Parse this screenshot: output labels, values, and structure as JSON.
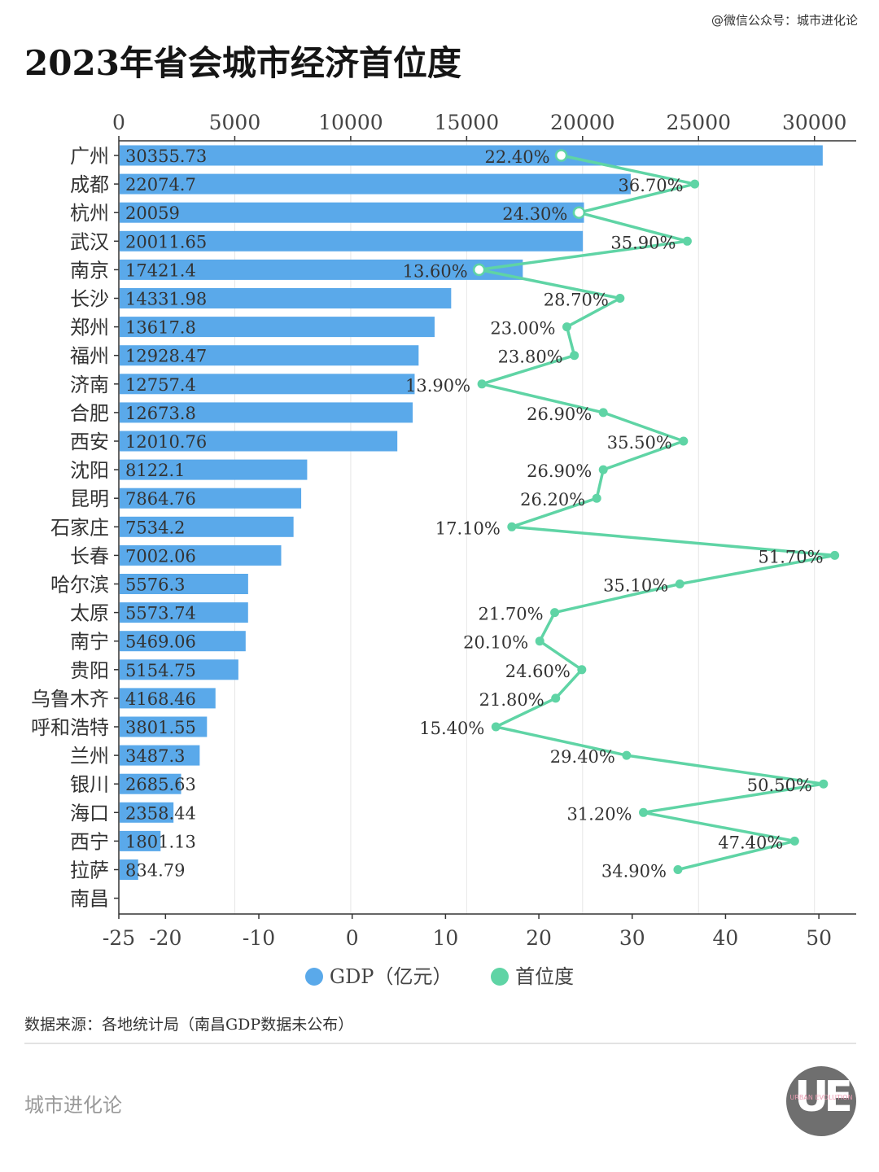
{
  "header": {
    "watermark": "@微信公众号：城市进化论",
    "title": "2023年省会城市经济首位度"
  },
  "chart_data": {
    "type": "bar",
    "title": "2023年省会城市经济首位度",
    "categories": [
      "广州",
      "成都",
      "杭州",
      "武汉",
      "南京",
      "长沙",
      "郑州",
      "福州",
      "济南",
      "合肥",
      "西安",
      "沈阳",
      "昆明",
      "石家庄",
      "长春",
      "哈尔滨",
      "太原",
      "南宁",
      "贵阳",
      "乌鲁木齐",
      "呼和浩特",
      "兰州",
      "银川",
      "海口",
      "西宁",
      "拉萨",
      "南昌"
    ],
    "series": [
      {
        "name": "GDP（亿元）",
        "type": "bar",
        "axis": "top",
        "color": "#5aa9ea",
        "values": [
          30355.73,
          22074.7,
          20059,
          20011.65,
          17421.4,
          14331.98,
          13617.8,
          12928.47,
          12757.4,
          12673.8,
          12010.76,
          8122.1,
          7864.76,
          7534.2,
          7002.06,
          5576.3,
          5573.74,
          5469.06,
          5154.75,
          4168.46,
          3801.55,
          3487.3,
          2685.63,
          2358.44,
          1801.13,
          834.79,
          null
        ],
        "labels": [
          "30355.73",
          "22074.7",
          "20059",
          "20011.65",
          "17421.4",
          "14331.98",
          "13617.8",
          "12928.47",
          "12757.4",
          "12673.8",
          "12010.76",
          "8122.1",
          "7864.76",
          "7534.2",
          "7002.06",
          "5576.3",
          "5573.74",
          "5469.06",
          "5154.75",
          "4168.46",
          "3801.55",
          "3487.3",
          "2685.63",
          "2358.44",
          "1801.13",
          "834.79",
          ""
        ]
      },
      {
        "name": "首位度",
        "type": "line",
        "axis": "bottom",
        "color": "#5fd4a5",
        "values": [
          22.4,
          36.7,
          24.3,
          35.9,
          13.6,
          28.7,
          23.0,
          23.8,
          13.9,
          26.9,
          35.5,
          26.9,
          26.2,
          17.1,
          51.7,
          35.1,
          21.7,
          20.1,
          24.6,
          21.8,
          15.4,
          29.4,
          50.5,
          31.2,
          47.4,
          34.9,
          null
        ],
        "labels": [
          "22.40%",
          "36.70%",
          "24.30%",
          "35.90%",
          "13.60%",
          "28.70%",
          "23.00%",
          "23.80%",
          "13.90%",
          "26.90%",
          "35.50%",
          "26.90%",
          "26.20%",
          "17.10%",
          "51.70%",
          "35.10%",
          "21.70%",
          "20.10%",
          "24.60%",
          "21.80%",
          "15.40%",
          "29.40%",
          "50.50%",
          "31.20%",
          "47.40%",
          "34.90%",
          ""
        ]
      }
    ],
    "top_axis": {
      "range": [
        0,
        31800
      ],
      "ticks": [
        0,
        5000,
        10000,
        15000,
        20000,
        25000,
        30000
      ],
      "tick_labels": [
        "0",
        "5000",
        "10000",
        "15000",
        "20000",
        "25000",
        "30000"
      ]
    },
    "bottom_axis": {
      "range": [
        -25,
        54
      ],
      "ticks": [
        -25,
        -20,
        -10,
        0,
        10,
        20,
        30,
        40,
        50
      ],
      "tick_labels": [
        "-25",
        "-20",
        "-10",
        "0",
        "10",
        "20",
        "30",
        "40",
        "50"
      ]
    },
    "hollow_markers_indices": [
      0,
      2,
      4
    ],
    "grid": true,
    "legend_placement": "bottom-center"
  },
  "legend": {
    "items": [
      {
        "label": "GDP（亿元）",
        "color": "#5aa9ea"
      },
      {
        "label": "首位度",
        "color": "#5fd4a5"
      }
    ]
  },
  "footer": {
    "source": "数据来源：各地统计局（南昌GDP数据未公布）",
    "brand": "城市进化论",
    "logo_mark": "UE",
    "logo_text": "URBAN EVOLUTION"
  }
}
